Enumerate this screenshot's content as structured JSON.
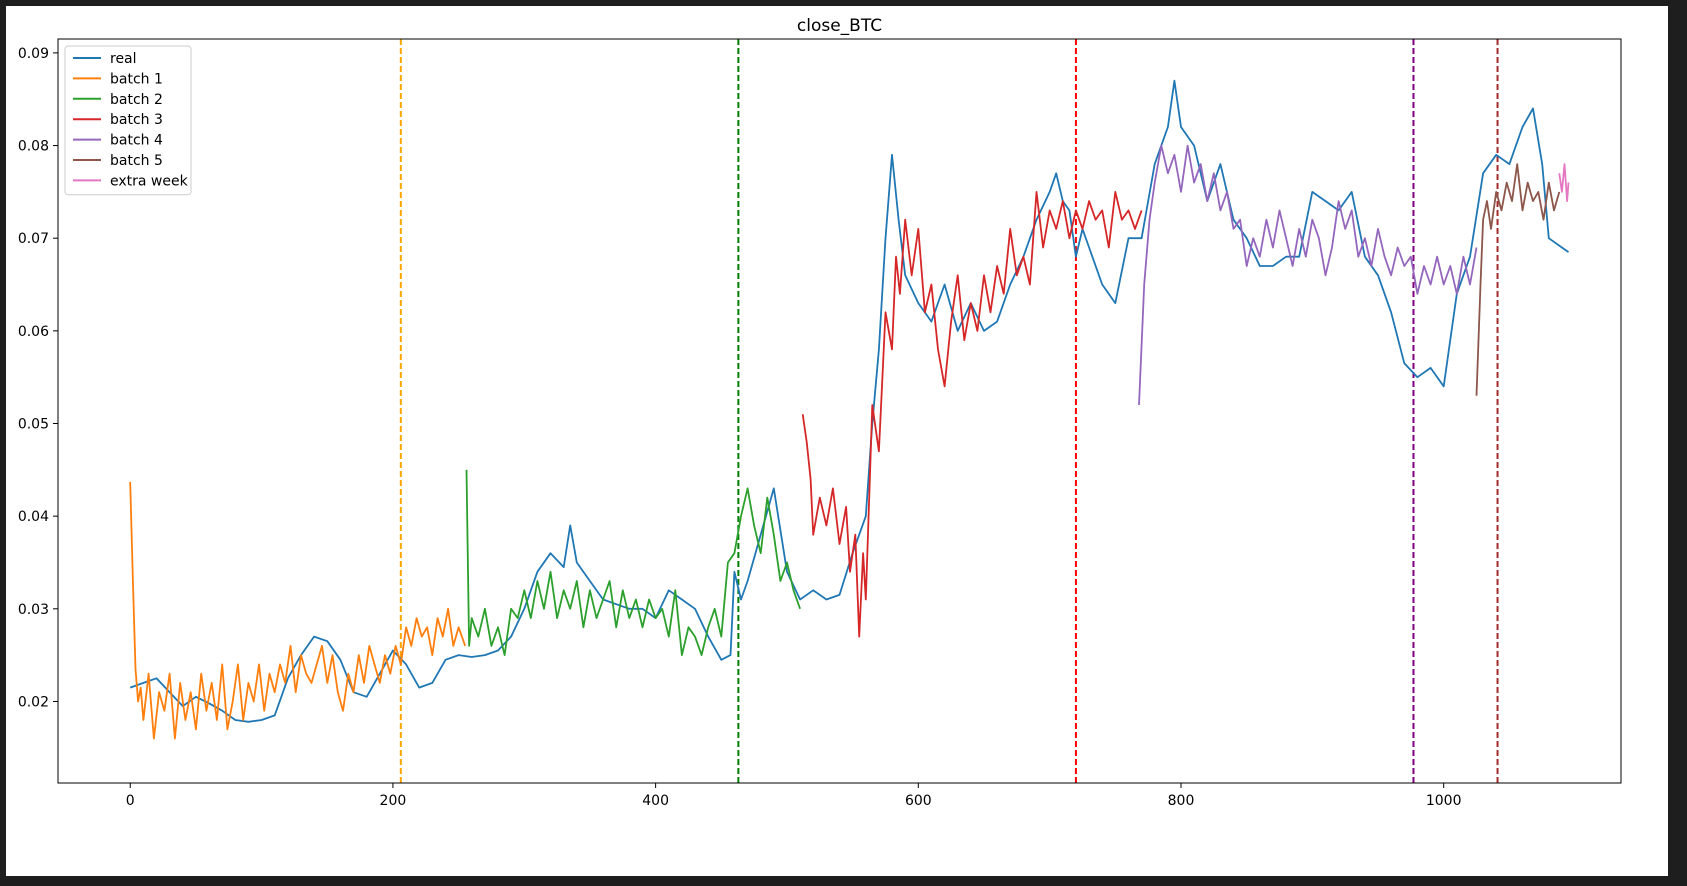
{
  "chart_data": {
    "type": "line",
    "title": "close_BTC",
    "xlabel": "",
    "ylabel": "",
    "xlim": [
      -55,
      1135
    ],
    "ylim": [
      0.0112,
      0.0915
    ],
    "xticks": [
      0,
      200,
      400,
      600,
      800,
      1000
    ],
    "yticks": [
      0.02,
      0.03,
      0.04,
      0.05,
      0.06,
      0.07,
      0.08,
      0.09
    ],
    "ytick_labels": [
      "0.02",
      "0.03",
      "0.04",
      "0.05",
      "0.06",
      "0.07",
      "0.08",
      "0.09"
    ],
    "grid": false,
    "legend_position": "upper-left",
    "series": [
      {
        "name": "real",
        "color": "#1f77b4",
        "x": [
          0,
          10,
          20,
          30,
          40,
          50,
          60,
          70,
          80,
          90,
          100,
          110,
          120,
          130,
          140,
          150,
          160,
          170,
          180,
          190,
          200,
          210,
          220,
          230,
          240,
          250,
          260,
          270,
          280,
          290,
          300,
          310,
          320,
          330,
          335,
          340,
          350,
          360,
          370,
          380,
          390,
          400,
          410,
          420,
          430,
          440,
          450,
          457,
          460,
          465,
          470,
          480,
          490,
          500,
          510,
          520,
          530,
          540,
          550,
          560,
          565,
          570,
          575,
          580,
          585,
          590,
          600,
          610,
          620,
          630,
          640,
          650,
          660,
          670,
          680,
          690,
          700,
          705,
          710,
          715,
          720,
          725,
          730,
          740,
          750,
          760,
          770,
          780,
          790,
          795,
          800,
          810,
          820,
          830,
          840,
          850,
          860,
          870,
          880,
          890,
          900,
          910,
          920,
          930,
          940,
          950,
          960,
          970,
          980,
          990,
          1000,
          1010,
          1020,
          1030,
          1040,
          1050,
          1060,
          1068,
          1075,
          1080,
          1090,
          1095
        ],
        "y": [
          0.0215,
          0.022,
          0.0225,
          0.021,
          0.0195,
          0.0205,
          0.0198,
          0.019,
          0.018,
          0.0178,
          0.018,
          0.0185,
          0.0225,
          0.025,
          0.027,
          0.0265,
          0.0245,
          0.021,
          0.0205,
          0.023,
          0.0255,
          0.024,
          0.0215,
          0.022,
          0.0245,
          0.025,
          0.0248,
          0.025,
          0.0255,
          0.027,
          0.03,
          0.034,
          0.036,
          0.0345,
          0.039,
          0.035,
          0.033,
          0.031,
          0.0305,
          0.03,
          0.03,
          0.029,
          0.032,
          0.031,
          0.03,
          0.027,
          0.0245,
          0.025,
          0.034,
          0.031,
          0.033,
          0.038,
          0.043,
          0.034,
          0.031,
          0.032,
          0.031,
          0.0315,
          0.036,
          0.04,
          0.05,
          0.058,
          0.07,
          0.079,
          0.072,
          0.066,
          0.063,
          0.061,
          0.065,
          0.06,
          0.063,
          0.06,
          0.061,
          0.065,
          0.068,
          0.072,
          0.075,
          0.077,
          0.074,
          0.073,
          0.068,
          0.071,
          0.069,
          0.065,
          0.063,
          0.07,
          0.07,
          0.078,
          0.082,
          0.087,
          0.082,
          0.08,
          0.074,
          0.078,
          0.072,
          0.07,
          0.067,
          0.067,
          0.068,
          0.068,
          0.075,
          0.074,
          0.073,
          0.075,
          0.068,
          0.066,
          0.062,
          0.0565,
          0.055,
          0.056,
          0.054,
          0.064,
          0.068,
          0.077,
          0.079,
          0.078,
          0.082,
          0.084,
          0.078,
          0.07,
          0.069,
          0.0685
        ]
      },
      {
        "name": "batch 1",
        "color": "#ff7f0e",
        "x": [
          0,
          2,
          4,
          6,
          8,
          10,
          14,
          18,
          22,
          26,
          30,
          34,
          38,
          42,
          46,
          50,
          54,
          58,
          62,
          66,
          70,
          74,
          78,
          82,
          86,
          90,
          94,
          98,
          102,
          106,
          110,
          114,
          118,
          122,
          126,
          130,
          134,
          138,
          142,
          146,
          150,
          154,
          158,
          162,
          166,
          170,
          174,
          178,
          182,
          186,
          190,
          194,
          198,
          202,
          206,
          210,
          214,
          218,
          222,
          226,
          230,
          234,
          238,
          242,
          246,
          250,
          255
        ],
        "y": [
          0.0437,
          0.033,
          0.0235,
          0.02,
          0.0215,
          0.018,
          0.023,
          0.016,
          0.021,
          0.019,
          0.023,
          0.016,
          0.022,
          0.018,
          0.021,
          0.017,
          0.023,
          0.019,
          0.022,
          0.018,
          0.024,
          0.017,
          0.02,
          0.024,
          0.018,
          0.022,
          0.02,
          0.024,
          0.019,
          0.023,
          0.021,
          0.024,
          0.022,
          0.026,
          0.021,
          0.025,
          0.023,
          0.022,
          0.024,
          0.026,
          0.022,
          0.025,
          0.021,
          0.019,
          0.023,
          0.021,
          0.025,
          0.022,
          0.026,
          0.024,
          0.022,
          0.025,
          0.023,
          0.026,
          0.024,
          0.028,
          0.026,
          0.029,
          0.027,
          0.028,
          0.025,
          0.029,
          0.027,
          0.03,
          0.026,
          0.028,
          0.026
        ]
      },
      {
        "name": "batch 2",
        "color": "#2ca02c",
        "x": [
          256,
          258,
          260,
          265,
          270,
          275,
          280,
          285,
          290,
          295,
          300,
          305,
          310,
          315,
          320,
          325,
          330,
          335,
          340,
          345,
          350,
          355,
          360,
          365,
          370,
          375,
          380,
          385,
          390,
          395,
          400,
          405,
          410,
          415,
          420,
          425,
          430,
          435,
          440,
          445,
          450,
          455,
          460,
          465,
          470,
          475,
          480,
          485,
          490,
          495,
          500,
          505,
          510
        ],
        "y": [
          0.045,
          0.026,
          0.029,
          0.027,
          0.03,
          0.026,
          0.028,
          0.025,
          0.03,
          0.029,
          0.032,
          0.029,
          0.033,
          0.03,
          0.034,
          0.029,
          0.032,
          0.03,
          0.033,
          0.028,
          0.032,
          0.029,
          0.031,
          0.033,
          0.028,
          0.032,
          0.029,
          0.031,
          0.028,
          0.031,
          0.029,
          0.03,
          0.027,
          0.032,
          0.025,
          0.028,
          0.027,
          0.025,
          0.028,
          0.03,
          0.027,
          0.035,
          0.036,
          0.04,
          0.043,
          0.039,
          0.036,
          0.042,
          0.038,
          0.033,
          0.035,
          0.032,
          0.03
        ]
      },
      {
        "name": "batch 3",
        "color": "#d62728",
        "x": [
          512,
          515,
          518,
          520,
          525,
          530,
          535,
          540,
          545,
          548,
          552,
          555,
          558,
          560,
          565,
          570,
          575,
          580,
          583,
          586,
          590,
          595,
          600,
          605,
          610,
          615,
          620,
          625,
          630,
          635,
          640,
          645,
          650,
          655,
          660,
          665,
          670,
          675,
          680,
          685,
          690,
          695,
          700,
          705,
          710,
          715,
          720,
          725,
          730,
          735,
          740,
          745,
          750,
          755,
          760,
          765,
          770
        ],
        "y": [
          0.051,
          0.048,
          0.044,
          0.038,
          0.042,
          0.039,
          0.043,
          0.037,
          0.041,
          0.034,
          0.038,
          0.027,
          0.036,
          0.031,
          0.052,
          0.047,
          0.062,
          0.058,
          0.068,
          0.064,
          0.072,
          0.066,
          0.071,
          0.062,
          0.065,
          0.058,
          0.054,
          0.061,
          0.066,
          0.059,
          0.063,
          0.06,
          0.066,
          0.062,
          0.067,
          0.064,
          0.071,
          0.066,
          0.068,
          0.065,
          0.075,
          0.069,
          0.073,
          0.071,
          0.074,
          0.07,
          0.073,
          0.071,
          0.074,
          0.072,
          0.073,
          0.069,
          0.075,
          0.072,
          0.073,
          0.071,
          0.073
        ]
      },
      {
        "name": "batch 4",
        "color": "#9467bd",
        "x": [
          768,
          772,
          776,
          780,
          785,
          790,
          795,
          800,
          805,
          810,
          815,
          820,
          825,
          830,
          835,
          840,
          845,
          850,
          855,
          860,
          865,
          870,
          875,
          880,
          885,
          890,
          895,
          900,
          905,
          910,
          915,
          920,
          925,
          930,
          935,
          940,
          945,
          950,
          955,
          960,
          965,
          970,
          975,
          980,
          985,
          990,
          995,
          1000,
          1005,
          1010,
          1015,
          1020,
          1025
        ],
        "y": [
          0.052,
          0.065,
          0.072,
          0.076,
          0.08,
          0.077,
          0.079,
          0.075,
          0.08,
          0.076,
          0.078,
          0.074,
          0.077,
          0.073,
          0.075,
          0.071,
          0.072,
          0.067,
          0.07,
          0.068,
          0.072,
          0.069,
          0.073,
          0.07,
          0.067,
          0.071,
          0.068,
          0.072,
          0.07,
          0.066,
          0.069,
          0.074,
          0.071,
          0.073,
          0.068,
          0.07,
          0.067,
          0.071,
          0.068,
          0.066,
          0.069,
          0.067,
          0.068,
          0.064,
          0.067,
          0.065,
          0.068,
          0.065,
          0.067,
          0.064,
          0.068,
          0.065,
          0.069
        ]
      },
      {
        "name": "batch 5",
        "color": "#8c564b",
        "x": [
          1025,
          1028,
          1030,
          1033,
          1036,
          1040,
          1044,
          1048,
          1052,
          1056,
          1060,
          1064,
          1068,
          1072,
          1076,
          1080,
          1084,
          1088
        ],
        "y": [
          0.053,
          0.065,
          0.072,
          0.074,
          0.071,
          0.075,
          0.073,
          0.076,
          0.074,
          0.078,
          0.073,
          0.076,
          0.074,
          0.075,
          0.072,
          0.076,
          0.073,
          0.075
        ]
      },
      {
        "name": "extra week",
        "color": "#e377c2",
        "x": [
          1088,
          1090,
          1092,
          1094,
          1095
        ],
        "y": [
          0.077,
          0.075,
          0.078,
          0.074,
          0.076
        ]
      }
    ],
    "vlines": [
      {
        "x": 206,
        "color": "#ffa500"
      },
      {
        "x": 463,
        "color": "#008000"
      },
      {
        "x": 720,
        "color": "#ff0000"
      },
      {
        "x": 977,
        "color": "#800080"
      },
      {
        "x": 1041,
        "color": "#a52a2a"
      }
    ]
  }
}
